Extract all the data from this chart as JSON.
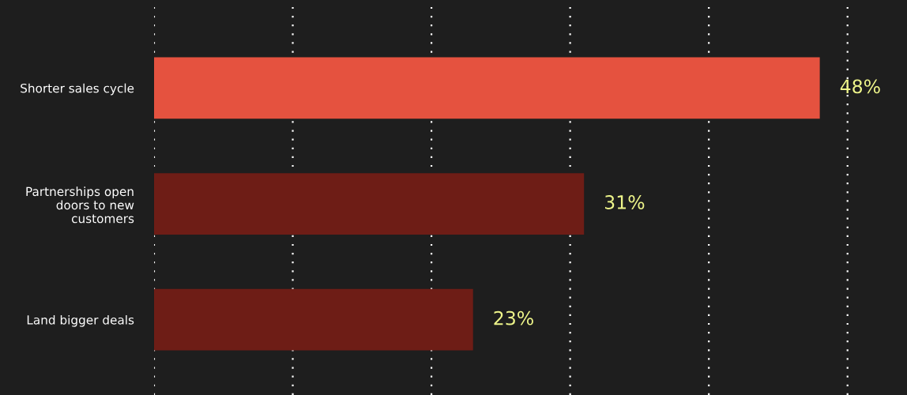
{
  "chart_data": {
    "type": "bar",
    "orientation": "horizontal",
    "categories": [
      "Shorter sales cycle",
      "Partnerships open\ndoors to new\ncustomers",
      "Land bigger deals"
    ],
    "values": [
      48,
      31,
      23
    ],
    "value_labels": [
      "48%",
      "31%",
      "23%"
    ],
    "colors": [
      "#e5523f",
      "#6e1d16",
      "#6e1d16"
    ],
    "grid": "x"
  }
}
